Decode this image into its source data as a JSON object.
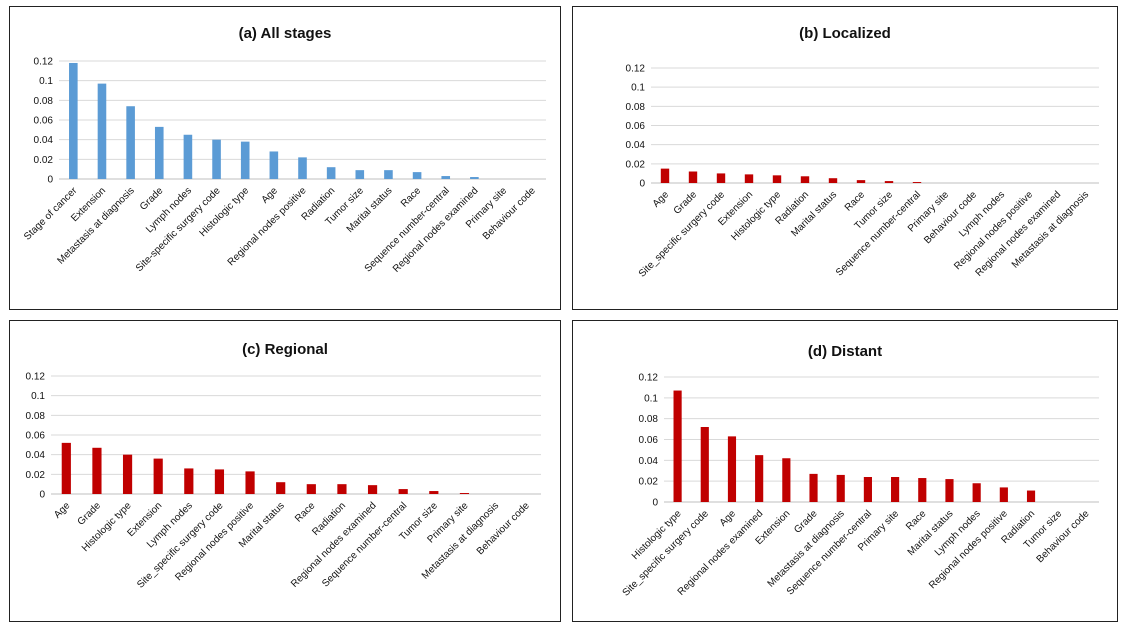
{
  "chart_data": [
    {
      "type": "bar",
      "title": "(a) All stages",
      "ylim": [
        0,
        0.12
      ],
      "yticks": [
        "0",
        "0.02",
        "0.04",
        "0.06",
        "0.08",
        "0.1",
        "0.12"
      ],
      "grid": true,
      "color": "#5b9bd5",
      "categories": [
        "Stage of cancer",
        "Extension",
        "Metastasis at diagnosis",
        "Grade",
        "Lymph nodes",
        "Site-specific surgery code",
        "Histologic type",
        "Age",
        "Regional nodes positive",
        "Radiation",
        "Tumor size",
        "Marital status",
        "Race",
        "Sequence number-central",
        "Regional nodes  examined",
        "Primary site",
        "Behaviour code"
      ],
      "values": [
        0.118,
        0.097,
        0.074,
        0.053,
        0.045,
        0.04,
        0.038,
        0.028,
        0.022,
        0.012,
        0.009,
        0.009,
        0.007,
        0.003,
        0.002,
        0,
        0
      ]
    },
    {
      "type": "bar",
      "title": "(b) Localized",
      "ylim": [
        0,
        0.12
      ],
      "yticks": [
        "0",
        "0.02",
        "0.04",
        "0.06",
        "0.08",
        "0.1",
        "0.12"
      ],
      "grid": true,
      "color": "#c00000",
      "categories": [
        "Age",
        "Grade",
        "Site_specific surgery code",
        "Extension",
        "Histologic type",
        "Radiation",
        "Marital status",
        "Race",
        "Tumor size",
        "Sequence number-central",
        "Primary site",
        "Behaviour code",
        "Lymph nodes",
        "Regional nodes positive",
        "Regional nodes  examined",
        "Metastasis at diagnosis"
      ],
      "values": [
        0.015,
        0.012,
        0.01,
        0.009,
        0.008,
        0.007,
        0.005,
        0.003,
        0.002,
        0.001,
        0,
        0,
        0,
        0,
        0,
        0
      ]
    },
    {
      "type": "bar",
      "title": "(c) Regional",
      "ylim": [
        0,
        0.12
      ],
      "yticks": [
        "0",
        "0.02",
        "0.04",
        "0.06",
        "0.08",
        "0.1",
        "0.12"
      ],
      "grid": true,
      "color": "#c00000",
      "categories": [
        "Age",
        "Grade",
        "Histologic type",
        "Extension",
        "Lymph nodes",
        "Site_specific surgery code",
        "Regional nodes positive",
        "Marital status",
        "Race",
        "Radiation",
        "Regional nodes  examined",
        "Sequence number-central",
        "Tumor size",
        "Primary site",
        "Metastasis at diagnosis",
        "Behaviour code"
      ],
      "values": [
        0.052,
        0.047,
        0.04,
        0.036,
        0.026,
        0.025,
        0.023,
        0.012,
        0.01,
        0.01,
        0.009,
        0.005,
        0.003,
        0.001,
        0,
        0
      ]
    },
    {
      "type": "bar",
      "title": "(d) Distant",
      "ylim": [
        0,
        0.12
      ],
      "yticks": [
        "0",
        "0.02",
        "0.04",
        "0.06",
        "0.08",
        "0.1",
        "0.12"
      ],
      "grid": true,
      "color": "#c00000",
      "categories": [
        "Histologic type",
        "Site_specific surgery code",
        "Age",
        "Regional nodes  examined",
        "Extension",
        "Grade",
        "Metastasis at diagnosis",
        "Sequence number-central",
        "Primary site",
        "Race",
        "Marital status",
        "Lymph nodes",
        "Regional nodes positive",
        "Radiation",
        "Tumor size",
        "Behaviour code"
      ],
      "values": [
        0.107,
        0.072,
        0.063,
        0.045,
        0.042,
        0.027,
        0.026,
        0.024,
        0.024,
        0.023,
        0.022,
        0.018,
        0.014,
        0.011,
        0,
        0
      ]
    }
  ]
}
